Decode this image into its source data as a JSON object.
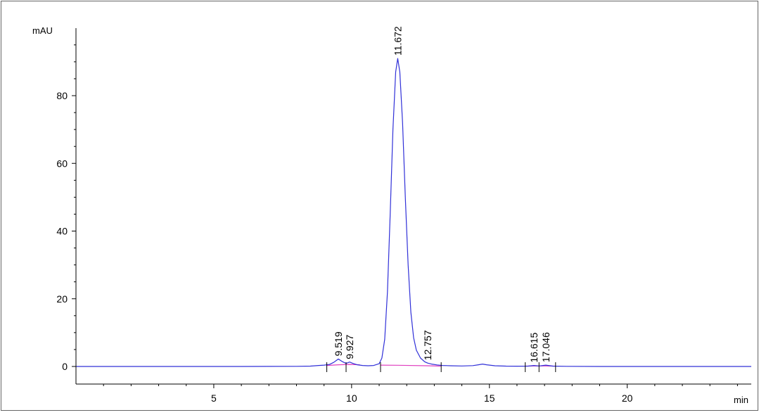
{
  "chart_data": {
    "type": "line",
    "title": "",
    "xlabel": "min",
    "ylabel": "mAU",
    "xlim": [
      0,
      24.5
    ],
    "ylim": [
      -5,
      100
    ],
    "x_ticks": [
      5,
      10,
      15,
      20
    ],
    "y_ticks": [
      0,
      20,
      40,
      60,
      80
    ],
    "grid": false,
    "series": [
      {
        "color": "#3030d8",
        "x": [
          0,
          2,
          4,
          6,
          8,
          8.5,
          8.8,
          9.0,
          9.2,
          9.35,
          9.519,
          9.65,
          9.8,
          9.927,
          10.05,
          10.2,
          10.4,
          10.6,
          10.8,
          11.0,
          11.1,
          11.2,
          11.3,
          11.4,
          11.5,
          11.6,
          11.672,
          11.75,
          11.85,
          11.95,
          12.05,
          12.15,
          12.25,
          12.35,
          12.5,
          12.65,
          12.757,
          12.9,
          13.1,
          13.3,
          13.6,
          14.0,
          14.4,
          14.6,
          14.75,
          14.9,
          15.2,
          15.6,
          16.0,
          16.4,
          16.615,
          16.8,
          17.046,
          17.3,
          17.8,
          19,
          21,
          23,
          24.5
        ],
        "y": [
          0,
          0,
          0,
          0,
          0.05,
          0.1,
          0.3,
          0.4,
          0.6,
          1.2,
          2.2,
          1.5,
          0.9,
          1.3,
          0.9,
          0.5,
          0.3,
          0.2,
          0.3,
          0.8,
          2.5,
          8,
          22,
          45,
          70,
          87,
          91,
          87,
          72,
          50,
          30,
          16,
          8.5,
          4.8,
          2.5,
          1.4,
          1.0,
          0.7,
          0.45,
          0.3,
          0.2,
          0.15,
          0.25,
          0.5,
          0.7,
          0.5,
          0.2,
          0.1,
          0.08,
          0.1,
          0.3,
          0.15,
          0.4,
          0.1,
          0.05,
          0,
          0,
          0,
          0
        ]
      }
    ],
    "baselines": [
      {
        "color": "#e040c0",
        "x": [
          9.1,
          9.519,
          9.927,
          10.3
        ],
        "y": [
          0.3,
          0.5,
          0.6,
          0.5
        ]
      },
      {
        "color": "#e040c0",
        "x": [
          11.05,
          11.672,
          12.757,
          13.25
        ],
        "y": [
          0.4,
          0.35,
          0.2,
          0.1
        ]
      },
      {
        "color": "#e040c0",
        "x": [
          16.3,
          16.615,
          17.046,
          17.4
        ],
        "y": [
          0.1,
          0.15,
          0.15,
          0.1
        ]
      }
    ],
    "peak_labels": [
      {
        "x": 9.519,
        "y": 2.2,
        "label": "9.519"
      },
      {
        "x": 9.927,
        "y": 1.3,
        "label": "9.927"
      },
      {
        "x": 11.672,
        "y": 91,
        "label": "11.672"
      },
      {
        "x": 12.757,
        "y": 1.0,
        "label": "12.757"
      },
      {
        "x": 16.615,
        "y": 0.3,
        "label": "16.615"
      },
      {
        "x": 17.046,
        "y": 0.4,
        "label": "17.046"
      }
    ],
    "integration_markers": [
      9.1,
      9.8,
      11.05,
      13.25,
      16.3,
      16.8,
      17.4
    ]
  }
}
